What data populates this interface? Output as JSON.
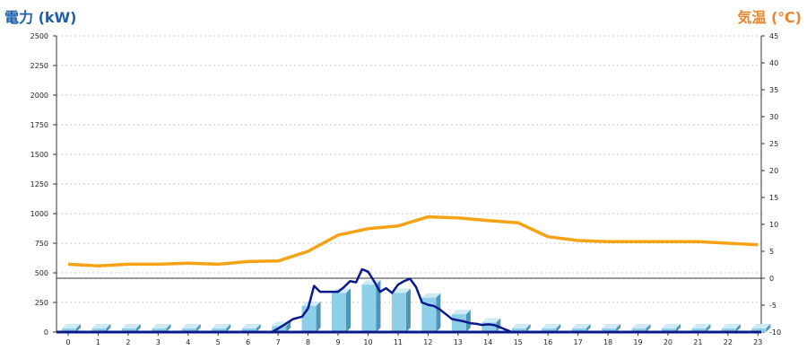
{
  "chart_data": {
    "type": "bar+line",
    "left_axis": {
      "label": "電力 (kW)",
      "color": "#1f5fa8",
      "min": 0,
      "max": 2500,
      "ticks": [
        0,
        250,
        500,
        750,
        1000,
        1250,
        1500,
        1750,
        2000,
        2250,
        2500
      ]
    },
    "right_axis": {
      "label": "気温 (℃)",
      "color": "#e8862e",
      "min": -10,
      "max": 45,
      "ticks": [
        -10,
        -5,
        0,
        5,
        10,
        15,
        20,
        25,
        30,
        35,
        40,
        45
      ]
    },
    "categories": [
      0,
      1,
      2,
      3,
      4,
      5,
      6,
      7,
      8,
      9,
      10,
      11,
      12,
      13,
      14,
      15,
      16,
      17,
      18,
      19,
      20,
      21,
      22,
      23
    ],
    "bars": {
      "axis": "left",
      "color": "#8dcfe8",
      "values": [
        30,
        30,
        30,
        30,
        30,
        30,
        30,
        50,
        220,
        330,
        400,
        330,
        290,
        150,
        80,
        30,
        30,
        30,
        30,
        30,
        30,
        30,
        30,
        30
      ]
    },
    "power_line": {
      "axis": "left",
      "color": "#0a1a8c",
      "x": [
        0,
        1,
        2,
        3,
        4,
        5,
        6,
        6.8,
        7.2,
        7.5,
        7.8,
        8.0,
        8.2,
        8.4,
        8.6,
        8.8,
        9.0,
        9.2,
        9.4,
        9.6,
        9.8,
        10.0,
        10.2,
        10.4,
        10.6,
        10.8,
        11.0,
        11.2,
        11.4,
        11.6,
        11.8,
        12.0,
        12.2,
        12.4,
        12.6,
        12.8,
        13.0,
        13.2,
        13.4,
        13.6,
        13.8,
        14.0,
        14.2,
        14.4,
        14.6,
        14.8,
        15,
        16,
        17,
        18,
        19,
        20,
        21,
        22,
        23
      ],
      "y": [
        0,
        0,
        0,
        0,
        0,
        0,
        0,
        0,
        60,
        110,
        130,
        200,
        390,
        340,
        340,
        340,
        340,
        380,
        430,
        420,
        530,
        510,
        430,
        340,
        370,
        330,
        400,
        430,
        450,
        380,
        250,
        230,
        220,
        190,
        150,
        110,
        100,
        90,
        75,
        70,
        60,
        65,
        60,
        40,
        20,
        0,
        0,
        0,
        0,
        0,
        0,
        0,
        0,
        0,
        0
      ]
    },
    "temperature_line": {
      "axis": "right",
      "color": "#f5a215",
      "x": [
        0,
        1,
        2,
        3,
        4,
        5,
        6,
        7,
        8,
        9,
        10,
        11,
        12,
        13,
        14,
        15,
        16,
        17,
        18,
        19,
        20,
        21,
        22,
        23
      ],
      "y": [
        2.6,
        2.3,
        2.6,
        2.6,
        2.8,
        2.6,
        3.1,
        3.2,
        5.0,
        8.0,
        9.2,
        9.7,
        11.4,
        11.2,
        10.7,
        10.3,
        7.7,
        7.0,
        6.8,
        6.8,
        6.8,
        6.8,
        6.5,
        6.2
      ]
    },
    "grid": true,
    "zero_reference_line": {
      "axis": "right",
      "value": 0
    }
  }
}
